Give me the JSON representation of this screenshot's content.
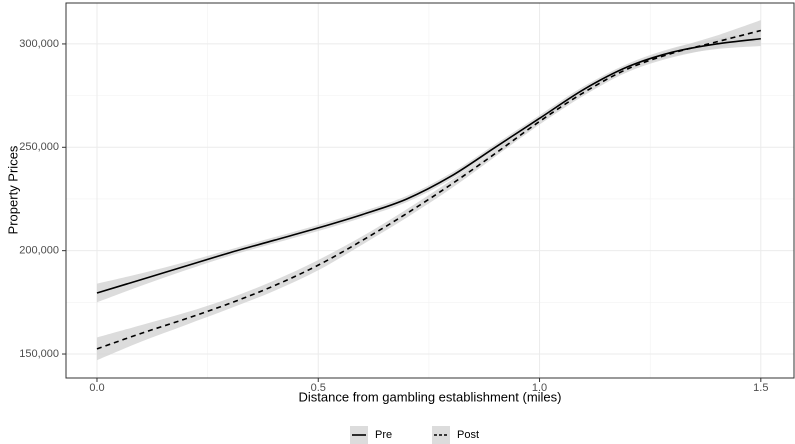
{
  "chart_data": {
    "type": "line",
    "x_label": "Distance from gambling establishment (miles)",
    "y_label": "Property Prices",
    "x": [
      0,
      0.1,
      0.2,
      0.3,
      0.4,
      0.5,
      0.6,
      0.7,
      0.8,
      0.9,
      1.0,
      1.1,
      1.2,
      1.3,
      1.4,
      1.5
    ],
    "series": [
      {
        "name": "Pre",
        "color": "#000000",
        "linestyle": "solid",
        "band_color": "#d3d3d3",
        "values": [
          179500,
          186000,
          192500,
          199000,
          205000,
          211000,
          217500,
          225000,
          236000,
          250000,
          264000,
          278000,
          289000,
          296000,
          300000,
          302500
        ],
        "lower": [
          175000,
          183000,
          190500,
          197500,
          203500,
          209500,
          216000,
          223500,
          234500,
          248500,
          262500,
          276500,
          287500,
          294000,
          297500,
          299000
        ],
        "upper": [
          184000,
          189000,
          194500,
          200500,
          206500,
          212500,
          219000,
          226500,
          237500,
          251500,
          265500,
          279500,
          290500,
          298000,
          302500,
          306000
        ]
      },
      {
        "name": "Post",
        "color": "#000000",
        "linestyle": "dashed",
        "band_color": "#d3d3d3",
        "values": [
          152500,
          160000,
          167000,
          174500,
          183000,
          193000,
          205000,
          218000,
          232000,
          247000,
          262500,
          276500,
          288000,
          295500,
          301000,
          306500
        ],
        "lower": [
          147000,
          156000,
          164000,
          172000,
          180500,
          190500,
          203000,
          216000,
          230000,
          245500,
          261000,
          275000,
          286500,
          293500,
          298000,
          301500
        ],
        "upper": [
          158000,
          164000,
          170000,
          177000,
          185500,
          195500,
          207000,
          220000,
          234000,
          248500,
          264000,
          278000,
          289500,
          297500,
          304000,
          311500
        ]
      }
    ],
    "xlim": [
      -0.07,
      1.575
    ],
    "ylim": [
      138400,
      319800
    ],
    "xticks": [
      {
        "value": 0,
        "label": "0.0"
      },
      0.5,
      {
        "value": 1,
        "label": "1.0"
      },
      1.5
    ],
    "yticks": [
      {
        "value": 150000,
        "label": "150,000"
      },
      {
        "value": 200000,
        "label": "200,000"
      },
      {
        "value": 250000,
        "label": "250,000"
      },
      {
        "value": 300000,
        "label": "300,000"
      }
    ],
    "minor_xticks": [
      0.25,
      0.75,
      1.25
    ],
    "minor_yticks": [
      175000,
      225000,
      275000
    ],
    "grid": true,
    "legend": "bottom"
  }
}
